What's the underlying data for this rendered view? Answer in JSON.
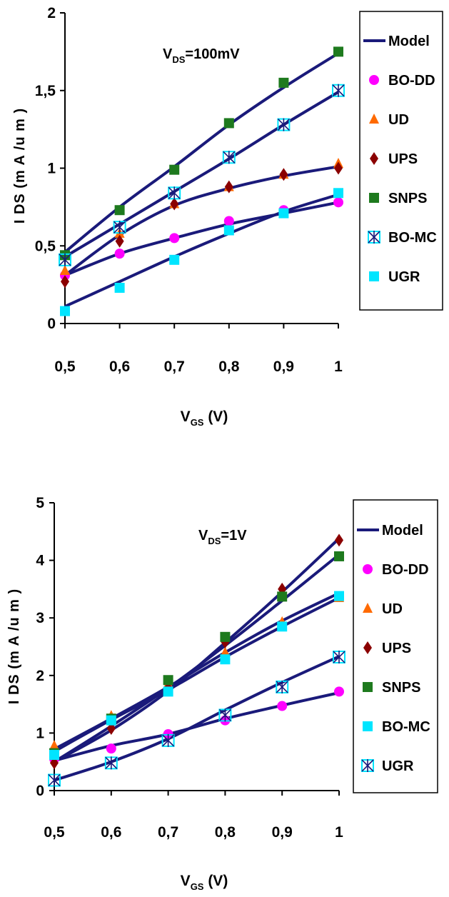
{
  "colors": {
    "model": "#1a1a7a",
    "BO-DD": "#ff00ff",
    "UD": "#ff6a00",
    "UPS": "#8b0000",
    "SNPS": "#1e7a1e",
    "BO-MC": "#00e5ff",
    "UGR": "#00e5ff",
    "axis": "#000000"
  },
  "chart_data": [
    {
      "type": "line",
      "annotation": {
        "main": "V",
        "sub": "DS",
        "rest": "=100mV"
      },
      "ylabel": "I DS (m A /u m )",
      "xlabel": {
        "main": "V",
        "sub": "GS",
        "rest": " (V)"
      },
      "x": [
        0.5,
        0.6,
        0.7,
        0.8,
        0.9,
        1.0
      ],
      "xtick_labels": [
        "0,5",
        "0,6",
        "0,7",
        "0,8",
        "0,9",
        "1"
      ],
      "ylim": [
        0,
        2
      ],
      "yticks": [
        0,
        0.5,
        1,
        1.5,
        2
      ],
      "ytick_labels": [
        "0",
        "0,5",
        "1",
        "1,5",
        "2"
      ],
      "legend": [
        "Model",
        "BO-DD",
        "UD",
        "UPS",
        "SNPS",
        "BO-MC",
        "UGR"
      ],
      "model_curves": [
        {
          "x": [
            0.5,
            0.6,
            0.7,
            0.8,
            0.9,
            1.0
          ],
          "values": [
            0.46,
            0.75,
            1.01,
            1.28,
            1.52,
            1.74
          ]
        },
        {
          "x": [
            0.5,
            0.6,
            0.7,
            0.8,
            0.9,
            1.0
          ],
          "values": [
            0.43,
            0.64,
            0.85,
            1.06,
            1.28,
            1.49
          ]
        },
        {
          "x": [
            0.5,
            0.6,
            0.7,
            0.8,
            0.9,
            1.0
          ],
          "values": [
            0.31,
            0.57,
            0.76,
            0.87,
            0.95,
            1.01
          ]
        },
        {
          "x": [
            0.5,
            0.6,
            0.7,
            0.8,
            0.9,
            1.0
          ],
          "values": [
            0.31,
            0.45,
            0.55,
            0.64,
            0.71,
            0.78
          ]
        },
        {
          "x": [
            0.5,
            0.6,
            0.7,
            0.8,
            0.9,
            1.0
          ],
          "values": [
            0.11,
            0.27,
            0.43,
            0.58,
            0.72,
            0.83
          ]
        }
      ],
      "series": [
        {
          "name": "BO-DD",
          "marker": "circle",
          "values": [
            0.31,
            0.45,
            0.55,
            0.66,
            0.73,
            0.78
          ]
        },
        {
          "name": "UD",
          "marker": "triangle",
          "values": [
            0.34,
            0.58,
            0.77,
            0.88,
            0.96,
            1.03
          ]
        },
        {
          "name": "UPS",
          "marker": "diamond",
          "values": [
            0.27,
            0.53,
            0.77,
            0.88,
            0.96,
            1.0
          ]
        },
        {
          "name": "SNPS",
          "marker": "square",
          "values": [
            0.44,
            0.73,
            0.99,
            1.29,
            1.55,
            1.75
          ]
        },
        {
          "name": "BO-MC",
          "marker": "asterisk",
          "values": [
            0.41,
            0.62,
            0.84,
            1.07,
            1.28,
            1.5
          ]
        },
        {
          "name": "UGR",
          "marker": "square",
          "values": [
            0.08,
            0.23,
            0.41,
            0.6,
            0.71,
            0.84
          ]
        }
      ]
    },
    {
      "type": "line",
      "annotation": {
        "main": "V",
        "sub": "DS",
        "rest": "=1V"
      },
      "ylabel": "I DS (m A /u m )",
      "xlabel": {
        "main": "V",
        "sub": "GS",
        "rest": " (V)"
      },
      "x": [
        0.5,
        0.6,
        0.7,
        0.8,
        0.9,
        1.0
      ],
      "xtick_labels": [
        "0,5",
        "0,6",
        "0,7",
        "0,8",
        "0,9",
        "1"
      ],
      "ylim": [
        0,
        5
      ],
      "yticks": [
        0,
        1,
        2,
        3,
        4,
        5
      ],
      "ytick_labels": [
        "0",
        "1",
        "2",
        "3",
        "4",
        "5"
      ],
      "legend": [
        "Model",
        "BO-DD",
        "UD",
        "UPS",
        "SNPS",
        "BO-MC",
        "UGR"
      ],
      "model_curves": [
        {
          "x": [
            0.5,
            0.6,
            0.7,
            0.8,
            0.9,
            1.0
          ],
          "values": [
            0.5,
            1.05,
            1.73,
            2.57,
            3.45,
            4.38
          ]
        },
        {
          "x": [
            0.5,
            0.6,
            0.7,
            0.8,
            0.9,
            1.0
          ],
          "values": [
            0.5,
            1.12,
            1.78,
            2.52,
            3.3,
            4.1
          ]
        },
        {
          "x": [
            0.5,
            0.6,
            0.7,
            0.8,
            0.9,
            1.0
          ],
          "values": [
            0.72,
            1.25,
            1.8,
            2.4,
            2.95,
            3.43
          ]
        },
        {
          "x": [
            0.5,
            0.6,
            0.7,
            0.8,
            0.9,
            1.0
          ],
          "values": [
            0.68,
            1.23,
            1.75,
            2.32,
            2.85,
            3.35
          ]
        },
        {
          "x": [
            0.5,
            0.6,
            0.7,
            0.8,
            0.9,
            1.0
          ],
          "values": [
            0.52,
            0.78,
            0.98,
            1.25,
            1.48,
            1.7
          ]
        },
        {
          "x": [
            0.5,
            0.6,
            0.7,
            0.8,
            0.9,
            1.0
          ],
          "values": [
            0.18,
            0.5,
            0.9,
            1.4,
            1.88,
            2.33
          ]
        }
      ],
      "series": [
        {
          "name": "BO-DD",
          "marker": "circle",
          "values": [
            0.55,
            0.73,
            0.98,
            1.22,
            1.47,
            1.72
          ]
        },
        {
          "name": "UD",
          "marker": "triangle",
          "values": [
            0.78,
            1.3,
            1.85,
            2.4,
            2.93,
            3.35
          ]
        },
        {
          "name": "UPS",
          "marker": "diamond",
          "values": [
            0.48,
            1.08,
            1.78,
            2.58,
            3.5,
            4.35
          ]
        },
        {
          "name": "SNPS",
          "marker": "square",
          "values": [
            0.65,
            1.25,
            1.92,
            2.67,
            3.37,
            4.07
          ]
        },
        {
          "name": "BO-MC",
          "marker": "square",
          "values": [
            0.62,
            1.22,
            1.72,
            2.28,
            2.85,
            3.38
          ]
        },
        {
          "name": "UGR",
          "marker": "asterisk",
          "values": [
            0.18,
            0.48,
            0.87,
            1.31,
            1.8,
            2.32
          ]
        }
      ]
    }
  ]
}
